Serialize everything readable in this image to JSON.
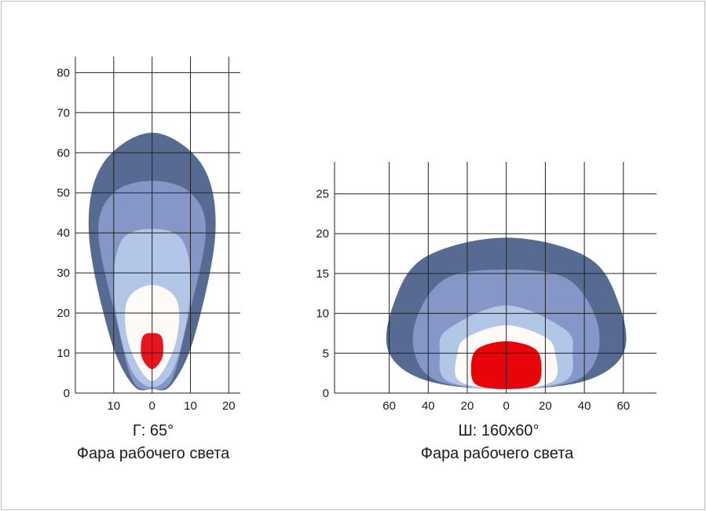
{
  "chart_data": [
    {
      "type": "area",
      "title": "Г: 65°",
      "subtitle": "Фара рабочего света",
      "xlim": [
        -20,
        23
      ],
      "ylim": [
        0,
        84
      ],
      "xticks": [
        {
          "v": -10,
          "label": "10"
        },
        {
          "v": 0,
          "label": "0"
        },
        {
          "v": 10,
          "label": "10"
        },
        {
          "v": 20,
          "label": "20"
        }
      ],
      "yticks": [
        {
          "v": 0,
          "label": "0"
        },
        {
          "v": 10,
          "label": "10"
        },
        {
          "v": 20,
          "label": "20"
        },
        {
          "v": 30,
          "label": "30"
        },
        {
          "v": 40,
          "label": "40"
        },
        {
          "v": 50,
          "label": "50"
        },
        {
          "v": 60,
          "label": "60"
        },
        {
          "v": 70,
          "label": "70"
        },
        {
          "v": 80,
          "label": "80"
        }
      ],
      "grid": true,
      "series": [
        {
          "color": "#566b92",
          "values": [
            [
              0,
              1
            ],
            [
              -5,
              2
            ],
            [
              -11,
              14
            ],
            [
              -16.5,
              40
            ],
            [
              -13,
              57
            ],
            [
              0,
              65
            ],
            [
              13,
              57
            ],
            [
              16.5,
              40
            ],
            [
              11,
              14
            ],
            [
              5,
              2
            ]
          ]
        },
        {
          "color": "#8497c6",
          "values": [
            [
              0,
              1
            ],
            [
              -5,
              3
            ],
            [
              -9,
              17
            ],
            [
              -14,
              40
            ],
            [
              -10,
              50
            ],
            [
              0,
              53
            ],
            [
              10,
              50
            ],
            [
              14,
              40
            ],
            [
              9,
              17
            ],
            [
              5,
              3
            ]
          ]
        },
        {
          "color": "#b2c6e7",
          "values": [
            [
              0,
              1.5
            ],
            [
              -6,
              7
            ],
            [
              -10,
              25
            ],
            [
              -8,
              38
            ],
            [
              0,
              41
            ],
            [
              8,
              38
            ],
            [
              10,
              25
            ],
            [
              6,
              7
            ]
          ]
        },
        {
          "color": "#fefaf7",
          "values": [
            [
              0,
              3
            ],
            [
              -6,
              12
            ],
            [
              -6.5,
              23
            ],
            [
              0,
              27
            ],
            [
              6.5,
              23
            ],
            [
              6,
              12
            ]
          ]
        },
        {
          "color": "#e8151f",
          "values": [
            [
              0,
              6
            ],
            [
              -2.7,
              9
            ],
            [
              -2.5,
              14
            ],
            [
              0,
              15
            ],
            [
              2.5,
              14
            ],
            [
              2.7,
              9
            ]
          ]
        }
      ]
    },
    {
      "type": "area",
      "title": "Ш: 160х60°",
      "subtitle": "Фара рабочего света",
      "xlim": [
        -88,
        77
      ],
      "ylim": [
        0,
        29
      ],
      "xticks": [
        {
          "v": -60,
          "label": "60"
        },
        {
          "v": -40,
          "label": "40"
        },
        {
          "v": -20,
          "label": "20"
        },
        {
          "v": 0,
          "label": "0"
        },
        {
          "v": 20,
          "label": "20"
        },
        {
          "v": 40,
          "label": "40"
        },
        {
          "v": 60,
          "label": "60"
        }
      ],
      "yticks": [
        {
          "v": 0,
          "label": "0"
        },
        {
          "v": 5,
          "label": "5"
        },
        {
          "v": 10,
          "label": "10"
        },
        {
          "v": 15,
          "label": "15"
        },
        {
          "v": 20,
          "label": "20"
        },
        {
          "v": 25,
          "label": "25"
        }
      ],
      "grid": true,
      "series": [
        {
          "color": "#566b92",
          "values": [
            [
              0,
              0.5
            ],
            [
              -40,
              1.5
            ],
            [
              -60,
              5
            ],
            [
              -58,
              11
            ],
            [
              -42,
              17
            ],
            [
              0,
              19.5
            ],
            [
              42,
              17
            ],
            [
              58,
              11
            ],
            [
              60,
              5
            ],
            [
              40,
              1.5
            ]
          ]
        },
        {
          "color": "#8497c6",
          "values": [
            [
              0,
              0.5
            ],
            [
              -35,
              1.5
            ],
            [
              -47,
              5
            ],
            [
              -45,
              10
            ],
            [
              -30,
              14.5
            ],
            [
              0,
              15.5
            ],
            [
              30,
              14.5
            ],
            [
              45,
              10
            ],
            [
              47,
              5
            ],
            [
              35,
              1.5
            ]
          ]
        },
        {
          "color": "#b2c6e7",
          "values": [
            [
              0,
              0.5
            ],
            [
              -30,
              1.5
            ],
            [
              -34,
              5
            ],
            [
              -30,
              8
            ],
            [
              0,
              11
            ],
            [
              30,
              8
            ],
            [
              34,
              5
            ],
            [
              30,
              1.5
            ]
          ]
        },
        {
          "color": "#fefaf7",
          "values": [
            [
              0,
              0.5
            ],
            [
              -24,
              1.5
            ],
            [
              -25,
              5
            ],
            [
              -20,
              7
            ],
            [
              0,
              8.5
            ],
            [
              20,
              7
            ],
            [
              25,
              5
            ],
            [
              24,
              1.5
            ]
          ]
        },
        {
          "color": "#e8050a",
          "values": [
            [
              0,
              0.5
            ],
            [
              -15,
              1
            ],
            [
              -18,
              3
            ],
            [
              -15,
              5.5
            ],
            [
              0,
              6.5
            ],
            [
              15,
              5.5
            ],
            [
              18,
              3
            ],
            [
              15,
              1
            ]
          ]
        }
      ]
    }
  ]
}
